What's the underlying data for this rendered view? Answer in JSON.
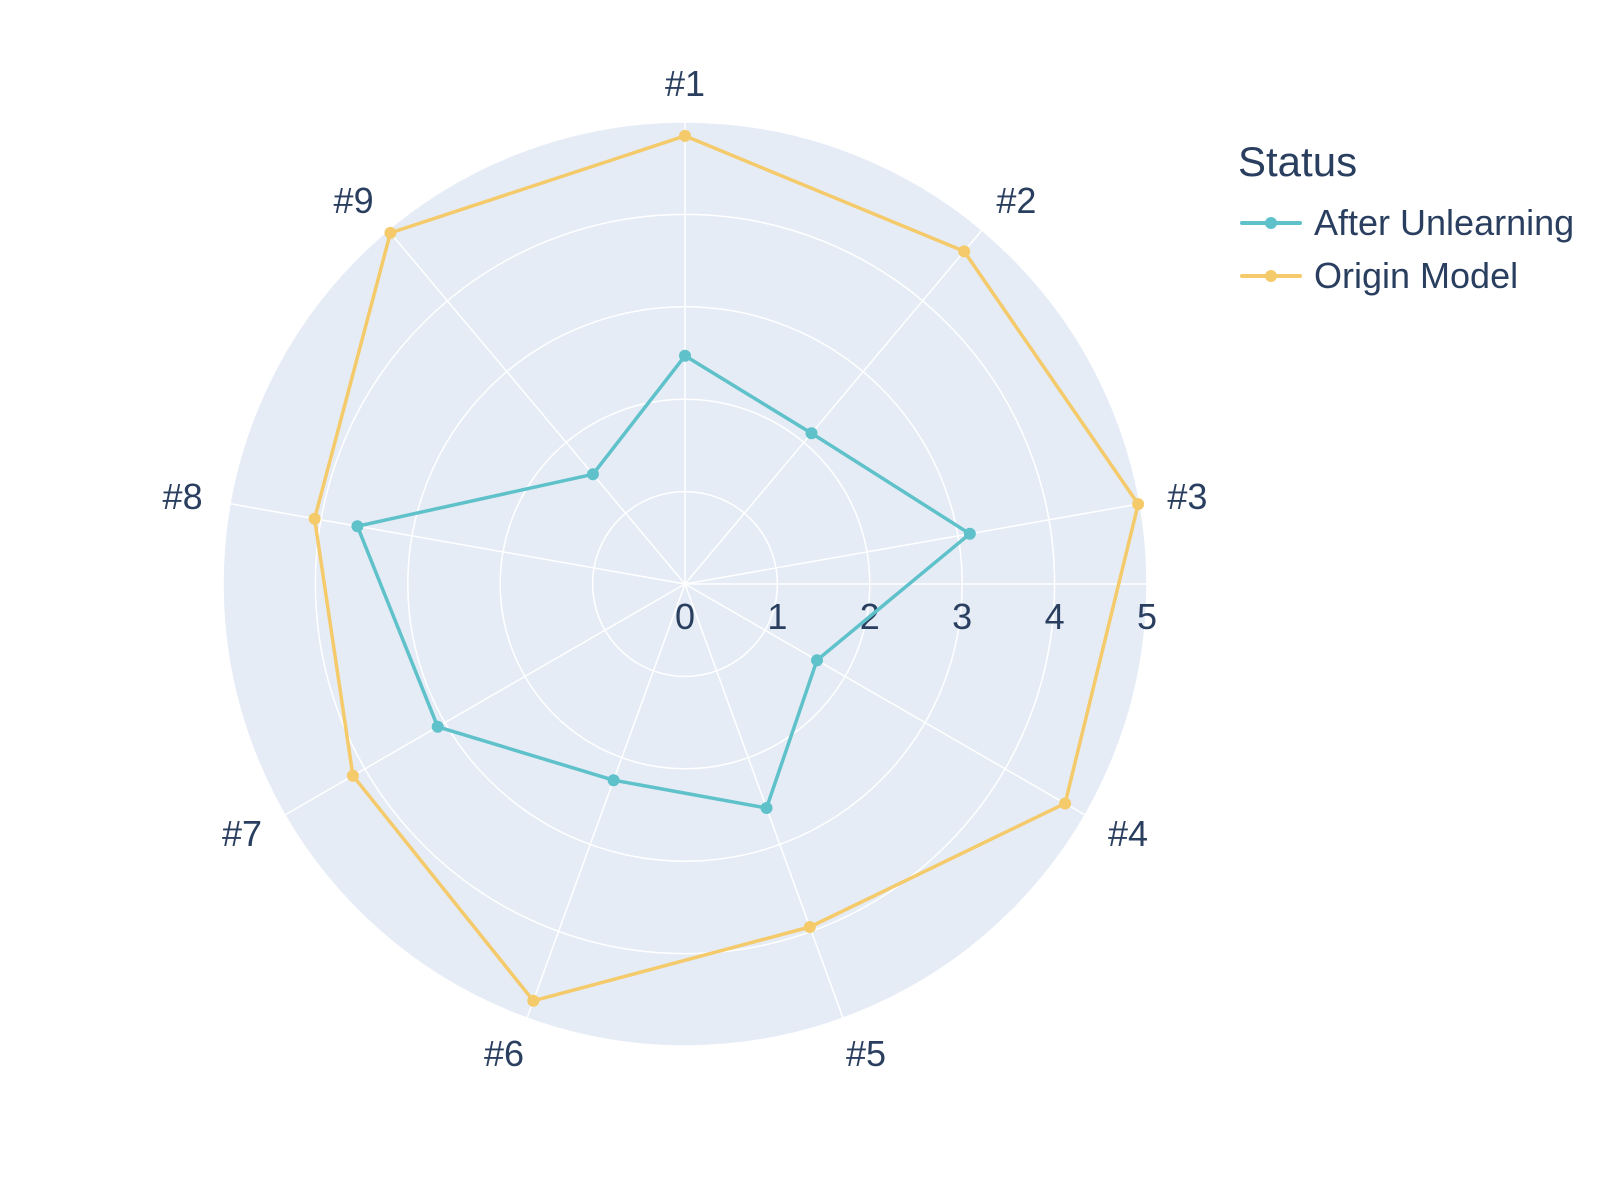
{
  "chart_data": {
    "type": "radar",
    "title": "",
    "categories": [
      "#1",
      "#2",
      "#3",
      "#4",
      "#5",
      "#6",
      "#7",
      "#8",
      "#9"
    ],
    "radial_ticks": [
      "0",
      "1",
      "2",
      "3",
      "4",
      "5"
    ],
    "rlim": [
      0,
      5
    ],
    "grid": true,
    "legend": {
      "title": "Status",
      "placement": "top-right"
    },
    "series": [
      {
        "name": "After Unlearning",
        "color": "#5fc1c9",
        "values": [
          2.47,
          2.13,
          3.13,
          1.65,
          2.58,
          2.26,
          3.09,
          3.6,
          1.55
        ]
      },
      {
        "name": "Origin Model",
        "color": "#f4ca6a",
        "values": [
          4.85,
          4.7,
          4.98,
          4.75,
          3.95,
          4.8,
          4.15,
          4.07,
          4.96
        ]
      }
    ],
    "colors": {
      "polar_background": "#e5ecf6",
      "grid": "#ffffff",
      "text": "#2a3f5f"
    }
  }
}
